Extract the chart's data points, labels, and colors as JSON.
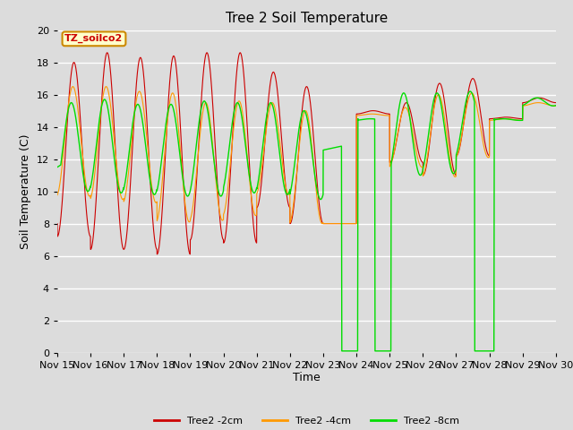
{
  "title": "Tree 2 Soil Temperature",
  "xlabel": "Time",
  "ylabel": "Soil Temperature (C)",
  "ylim": [
    0,
    20
  ],
  "bg_color": "#dcdcdc",
  "annotation_text": "TZ_soilco2",
  "annotation_bg": "#ffffcc",
  "annotation_border": "#cc8800",
  "x_tick_labels": [
    "Nov 15",
    "Nov 16",
    "Nov 17",
    "Nov 18",
    "Nov 19",
    "Nov 20",
    "Nov 21",
    "Nov 22",
    "Nov 23",
    "Nov 24",
    "Nov 25",
    "Nov 26",
    "Nov 27",
    "Nov 28",
    "Nov 29",
    "Nov 30"
  ],
  "colors": {
    "2cm": "#cc0000",
    "4cm": "#ff9900",
    "8cm": "#00dd00"
  },
  "legend_labels": [
    "Tree2 -2cm",
    "Tree2 -4cm",
    "Tree2 -8cm"
  ],
  "grid_color": "#ffffff"
}
